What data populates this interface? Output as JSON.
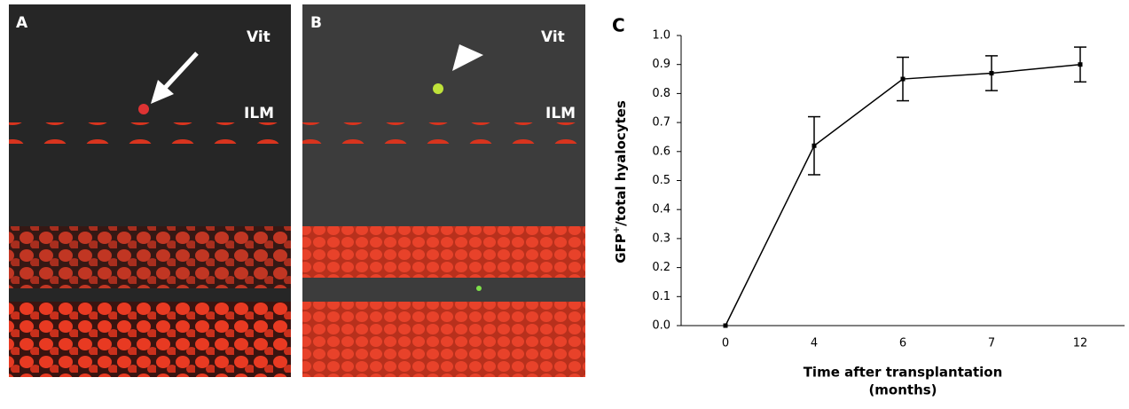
{
  "panels": [
    {
      "label": "A",
      "vit": "Vit",
      "ilm": "ILM"
    },
    {
      "label": "B",
      "vit": "Vit",
      "ilm": "ILM"
    }
  ],
  "chart_data": {
    "type": "line",
    "panel_label": "C",
    "categories": [
      "0",
      "4",
      "6",
      "7",
      "12"
    ],
    "values": [
      0,
      0.62,
      0.85,
      0.87,
      0.9
    ],
    "errors": [
      0,
      0.1,
      0.075,
      0.06,
      0.06
    ],
    "color": "#000000",
    "ylim": [
      0,
      1
    ],
    "yticks": [
      {
        "value": 0,
        "label": "0.0"
      },
      0.1,
      0.2,
      0.3,
      0.4,
      0.5,
      0.6,
      0.7,
      0.8,
      0.9,
      {
        "value": 1,
        "label": "1.0"
      }
    ],
    "x_label": [
      "Time after transplantation",
      "(months)"
    ],
    "y_label": {
      "text": "GFP",
      "sup": "+",
      "rest": "/total hyalocytes"
    },
    "grid": false
  }
}
